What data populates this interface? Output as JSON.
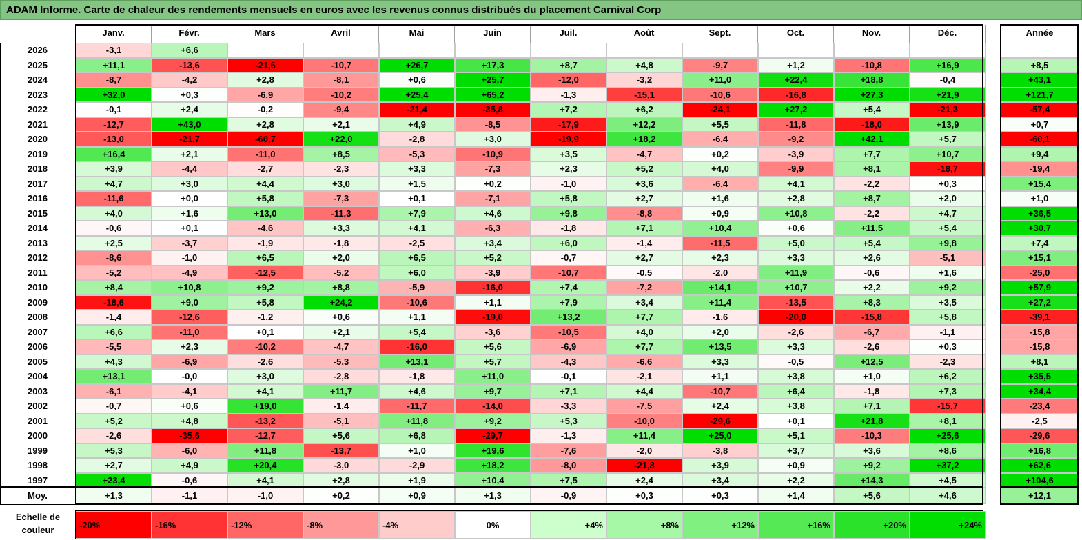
{
  "title": "ADAM Informe. Carte de chaleur des rendements mensuels en euros avec les revenus connus distribués du placement Carnival Corp",
  "chart_data": {
    "type": "heatmap",
    "title": "ADAM Informe. Carte de chaleur des rendements mensuels en euros avec les revenus connus distribués du placement Carnival Corp",
    "months": [
      "Janv.",
      "Févr.",
      "Mars",
      "Avril",
      "Mai",
      "Juin",
      "Juil.",
      "Août",
      "Sept.",
      "Oct.",
      "Nov.",
      "Déc."
    ],
    "year_header": "Année",
    "rows": [
      {
        "label": "2026",
        "values": [
          "-3,1",
          "+6,6",
          "",
          "",
          "",
          "",
          "",
          "",
          "",
          "",
          "",
          ""
        ],
        "year": ""
      },
      {
        "label": "2025",
        "values": [
          "+11,1",
          "-13,6",
          "-21,6",
          "-10,7",
          "+26,7",
          "+17,3",
          "+8,7",
          "+4,8",
          "-9,7",
          "+1,2",
          "-10,8",
          "+16,9"
        ],
        "year": "+8,5"
      },
      {
        "label": "2024",
        "values": [
          "-8,7",
          "-4,2",
          "+2,8",
          "-8,1",
          "+0,6",
          "+25,7",
          "-12,0",
          "-3,2",
          "+11,0",
          "+22,4",
          "+18,8",
          "-0,4"
        ],
        "year": "+43,1"
      },
      {
        "label": "2023",
        "values": [
          "+32,0",
          "+0,3",
          "-6,9",
          "-10,2",
          "+25,4",
          "+65,2",
          "-1,3",
          "-15,1",
          "-10,6",
          "-16,8",
          "+27,3",
          "+21,9"
        ],
        "year": "+121,7"
      },
      {
        "label": "2022",
        "values": [
          "-0,1",
          "+2,4",
          "-0,2",
          "-9,4",
          "-21,4",
          "-35,8",
          "+7,2",
          "+6,2",
          "-24,1",
          "+27,2",
          "+5,4",
          "-21,3"
        ],
        "year": "-57,4"
      },
      {
        "label": "2021",
        "values": [
          "-12,7",
          "+43,0",
          "+2,8",
          "+2,1",
          "+4,9",
          "-8,5",
          "-17,9",
          "+12,2",
          "+5,5",
          "-11,8",
          "-18,0",
          "+13,9"
        ],
        "year": "+0,7"
      },
      {
        "label": "2020",
        "values": [
          "-13,0",
          "-21,7",
          "-60,7",
          "+22,0",
          "-2,8",
          "+3,0",
          "-19,9",
          "+18,2",
          "-6,4",
          "-9,2",
          "+42,1",
          "+5,7"
        ],
        "year": "-60,1"
      },
      {
        "label": "2019",
        "values": [
          "+16,4",
          "+2,1",
          "-11,0",
          "+8,5",
          "-5,3",
          "-10,9",
          "+3,5",
          "-4,7",
          "+0,2",
          "-3,9",
          "+7,7",
          "+10,7"
        ],
        "year": "+9,4"
      },
      {
        "label": "2018",
        "values": [
          "+3,9",
          "-4,4",
          "-2,7",
          "-2,3",
          "+3,3",
          "-7,3",
          "+2,3",
          "+5,2",
          "+4,0",
          "-9,9",
          "+8,1",
          "-18,7"
        ],
        "year": "-19,4"
      },
      {
        "label": "2017",
        "values": [
          "+4,7",
          "+3,0",
          "+4,4",
          "+3,0",
          "+1,5",
          "+0,2",
          "-1,0",
          "+3,6",
          "-6,4",
          "+4,1",
          "-2,2",
          "+0,3"
        ],
        "year": "+15,4"
      },
      {
        "label": "2016",
        "values": [
          "-11,6",
          "+0,0",
          "+5,8",
          "-7,3",
          "+0,1",
          "-7,1",
          "+5,8",
          "+2,7",
          "+1,6",
          "+2,8",
          "+8,7",
          "+2,0"
        ],
        "year": "+1,0"
      },
      {
        "label": "2015",
        "values": [
          "+4,0",
          "+1,6",
          "+13,0",
          "-11,3",
          "+7,9",
          "+4,6",
          "+9,8",
          "-8,8",
          "+0,9",
          "+10,8",
          "-2,2",
          "+4,7"
        ],
        "year": "+36,5"
      },
      {
        "label": "2014",
        "values": [
          "-0,6",
          "+0,1",
          "-4,6",
          "+3,3",
          "+4,1",
          "-6,3",
          "-1,8",
          "+7,1",
          "+10,4",
          "+0,6",
          "+11,5",
          "+5,4"
        ],
        "year": "+30,7"
      },
      {
        "label": "2013",
        "values": [
          "+2,5",
          "-3,7",
          "-1,9",
          "-1,8",
          "-2,5",
          "+3,4",
          "+6,0",
          "-1,4",
          "-11,5",
          "+5,0",
          "+5,4",
          "+9,8"
        ],
        "year": "+7,4"
      },
      {
        "label": "2012",
        "values": [
          "-8,6",
          "-1,0",
          "+6,5",
          "+2,0",
          "+6,5",
          "+5,2",
          "-0,7",
          "+2,7",
          "+2,3",
          "+3,3",
          "+2,6",
          "-5,1"
        ],
        "year": "+15,1"
      },
      {
        "label": "2011",
        "values": [
          "-5,2",
          "-4,9",
          "-12,5",
          "-5,2",
          "+6,0",
          "-3,9",
          "-10,7",
          "-0,5",
          "-2,0",
          "+11,9",
          "-0,6",
          "+1,6"
        ],
        "year": "-25,0"
      },
      {
        "label": "2010",
        "values": [
          "+8,4",
          "+10,8",
          "+9,2",
          "+8,8",
          "-5,9",
          "-16,0",
          "+7,4",
          "-7,2",
          "+14,1",
          "+10,7",
          "+2,2",
          "+9,2"
        ],
        "year": "+57,9"
      },
      {
        "label": "2009",
        "values": [
          "-18,6",
          "+9,0",
          "+5,8",
          "+24,2",
          "-10,6",
          "+1,1",
          "+7,9",
          "+3,4",
          "+11,4",
          "-13,5",
          "+8,3",
          "+3,5"
        ],
        "year": "+27,2"
      },
      {
        "label": "2008",
        "values": [
          "-1,4",
          "-12,6",
          "-1,2",
          "+0,6",
          "+1,1",
          "-19,0",
          "+13,2",
          "+7,7",
          "-1,6",
          "-20,0",
          "-15,8",
          "+5,8"
        ],
        "year": "-39,1"
      },
      {
        "label": "2007",
        "values": [
          "+6,6",
          "-11,0",
          "+0,1",
          "+2,1",
          "+5,4",
          "-3,6",
          "-10,5",
          "+4,0",
          "+2,0",
          "-2,6",
          "-6,7",
          "-1,1"
        ],
        "year": "-15,8"
      },
      {
        "label": "2006",
        "values": [
          "-5,5",
          "+2,3",
          "-10,2",
          "-4,7",
          "-16,0",
          "+5,6",
          "-6,9",
          "+7,7",
          "+13,5",
          "+3,3",
          "-2,6",
          "+0,3"
        ],
        "year": "-15,8"
      },
      {
        "label": "2005",
        "values": [
          "+4,3",
          "-6,9",
          "-2,6",
          "-5,3",
          "+13,1",
          "+5,7",
          "-4,3",
          "-6,6",
          "+3,3",
          "-0,5",
          "+12,5",
          "-2,3"
        ],
        "year": "+8,1"
      },
      {
        "label": "2004",
        "values": [
          "+13,1",
          "-0,0",
          "+3,0",
          "-2,8",
          "-1,8",
          "+11,0",
          "-0,1",
          "-2,1",
          "+1,1",
          "+3,8",
          "+1,0",
          "+6,2"
        ],
        "year": "+35,5"
      },
      {
        "label": "2003",
        "values": [
          "-6,1",
          "-4,1",
          "+4,1",
          "+11,7",
          "+4,6",
          "+9,7",
          "+7,1",
          "+4,4",
          "-10,7",
          "+6,4",
          "-1,8",
          "+7,3"
        ],
        "year": "+34,4"
      },
      {
        "label": "2002",
        "values": [
          "-0,7",
          "+0,6",
          "+19,0",
          "-1,4",
          "-11,7",
          "-14,0",
          "-3,3",
          "-7,5",
          "+2,4",
          "+3,8",
          "+7,1",
          "-15,7"
        ],
        "year": "-23,4"
      },
      {
        "label": "2001",
        "values": [
          "+5,2",
          "+4,8",
          "-13,2",
          "-5,1",
          "+11,8",
          "+9,2",
          "+5,3",
          "-10,0",
          "-29,6",
          "+0,1",
          "+21,8",
          "+8,1"
        ],
        "year": "-2,5"
      },
      {
        "label": "2000",
        "values": [
          "-2,6",
          "-35,6",
          "-12,7",
          "+5,6",
          "+6,8",
          "-29,7",
          "-1,3",
          "+11,4",
          "+25,0",
          "+5,1",
          "-10,3",
          "+25,6"
        ],
        "year": "-29,6"
      },
      {
        "label": "1999",
        "values": [
          "+5,3",
          "-6,0",
          "+11,8",
          "-13,7",
          "+1,0",
          "+19,6",
          "-7,6",
          "-2,0",
          "-3,8",
          "+3,7",
          "+3,6",
          "+8,6"
        ],
        "year": "+16,8"
      },
      {
        "label": "1998",
        "values": [
          "+2,7",
          "+4,9",
          "+20,4",
          "-3,0",
          "-2,9",
          "+18,2",
          "-8,0",
          "-21,8",
          "+3,9",
          "+0,9",
          "+9,2",
          "+37,2"
        ],
        "year": "+62,6"
      },
      {
        "label": "1997",
        "values": [
          "+23,4",
          "-0,6",
          "+4,1",
          "+2,8",
          "+1,9",
          "+10,4",
          "+7,5",
          "+2,4",
          "+3,4",
          "+2,2",
          "+14,3",
          "+4,5"
        ],
        "year": "+104,6"
      }
    ],
    "average": {
      "label": "Moy.",
      "values": [
        "+1,3",
        "-1,1",
        "-1,0",
        "+0,2",
        "+0,9",
        "+1,3",
        "-0,9",
        "+0,3",
        "+0,3",
        "+1,4",
        "+5,6",
        "+4,6"
      ],
      "year": "+12,1"
    },
    "scale_label": "Echelle de couleur",
    "scale": [
      {
        "label": "-20%",
        "value": -20,
        "color": "#ff0000"
      },
      {
        "label": "-16%",
        "value": -16,
        "color": "#ff3333"
      },
      {
        "label": "-12%",
        "value": -12,
        "color": "#ff6666"
      },
      {
        "label": "-8%",
        "value": -8,
        "color": "#ff9999"
      },
      {
        "label": "-4%",
        "value": -4,
        "color": "#ffcccc"
      },
      {
        "label": "0%",
        "value": 0,
        "color": "#ffffff"
      },
      {
        "label": "+4%",
        "value": 4,
        "color": "#ccffcc"
      },
      {
        "label": "+8%",
        "value": 8,
        "color": "#a6f7a6"
      },
      {
        "label": "+12%",
        "value": 12,
        "color": "#80f080"
      },
      {
        "label": "+16%",
        "value": 16,
        "color": "#55e955"
      },
      {
        "label": "+20%",
        "value": 20,
        "color": "#2be22b"
      },
      {
        "label": "+24%",
        "value": 24,
        "color": "#00dd00"
      }
    ],
    "colors": {
      "negative": "#ff0000",
      "positive": "#00dd00",
      "neutral": "#ffffff",
      "title_bg": "#84c584"
    }
  }
}
